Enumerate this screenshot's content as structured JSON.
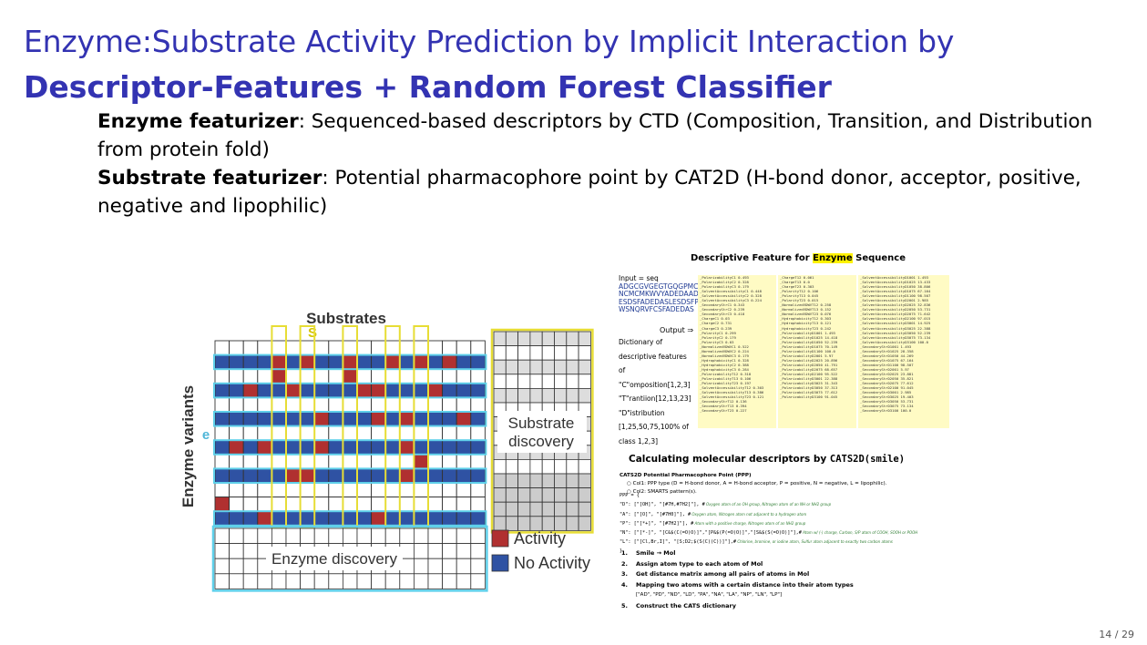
{
  "slide": {
    "title_line1": "Enzyme:Substrate Activity Prediction by Implicit Interaction by",
    "title_line2": "Descriptor-Features + Random Forest Classifier",
    "enzyme_label": "Enzyme featurizer",
    "enzyme_text": ": Sequenced-based descriptors by CTD (Composition, Transition, and Distribution from protein fold)",
    "substrate_label": "Substrate featurizer",
    "substrate_text": ": Potential pharmacophore point by CAT2D (H-bond donor, acceptor, positive, negative and lipophilic)",
    "page_number": "14 / 29"
  },
  "figure_left": {
    "substrates_label": "Substrates",
    "s_label": "S",
    "enzyme_variants_label": "Enzyme variants",
    "e_label": "e",
    "substrate_discovery_line1": "Substrate",
    "substrate_discovery_line2": "discovery",
    "enzyme_discovery_label": "Enzyme discovery",
    "legend": [
      {
        "label": "Activity",
        "color": "#b03030"
      },
      {
        "label": "No Activity",
        "color": "#2f52a3"
      }
    ]
  },
  "figure_right_top": {
    "title_prefix": "Descriptive Feature for ",
    "title_highlight": "Enzyme",
    "title_suffix": " Sequence",
    "input_label": "Input = seq",
    "sequence_lines": [
      "ADGCGVGEGTGQGPMC",
      "NCMCMKWVYADEDAADL",
      "ESDSFADEDASLESDSFP",
      "WSNQRVFCSFADEDAS"
    ],
    "output_label": "Output ⇒",
    "description_lines": [
      "Dictionary of",
      "descriptive features",
      "of",
      "\"C\"omposition[1,2,3]",
      "\"T\"rantiion[12,13,23]",
      "\"D\"istribution",
      "[1,25,50,75,100% of",
      "class 1,2,3]"
    ],
    "column1": [
      "_PolarizabilityC1 0.493",
      "_PolarizabilityC2 0.328",
      "_PolarizabilityC3 0.179",
      "_SolventAccessibilityC1 0.448",
      "_SolventAccessibilityC2 0.328",
      "_SolventAccessibilityC3 0.224",
      "_SecondaryStrC1 0.343",
      "_SecondaryStrC2 0.239",
      "_SecondaryStrC3 0.418",
      "_ChargeC1 0.03",
      "_ChargeC2 0.731",
      "_ChargeC3 0.239",
      "_PolarityC1 0.299",
      "_PolarityC2 0.179",
      "_PolarityC3 0.03",
      "_NormalizedVDWVC1 0.522",
      "_NormalizedVDWVC2 0.224",
      "_NormalizedVDWVC3 0.179",
      "_HydrophobicityC1 0.328",
      "_HydrophobicityC2 0.388",
      "_HydrophobicityC3 0.284",
      "_PolarizabilityT12 0.318",
      "_PolarizabilityT13 0.106",
      "_PolarizabilityT23 0.197",
      "_SolventAccessibilityT12 0.303",
      "_SolventAccessibilityT13 0.386",
      "_SolventAccessibilityT23 0.121",
      "_SecondaryStrT12 0.136",
      "_SecondaryStrT13 0.394",
      "_SecondaryStrT23 0.227"
    ],
    "column2": [
      "_ChargeT12 0.061",
      "_ChargeT13 0.0",
      "_ChargeT23 0.303",
      "_PolarityT12 0.106",
      "_PolarityT13 0.045",
      "_PolarityT23 0.015",
      "_NormalizedVDWVT12 0.258",
      "_NormalizedVDWVT13 0.152",
      "_NormalizedVDWVT23 0.076",
      "_HydrophobicityT12 0.303",
      "_HydrophobicityT13 0.121",
      "_HydrophobicityT23 0.242",
      "_PolarizabilityD1001 1.493",
      "_PolarizabilityD1025 14.418",
      "_PolarizabilityD1050 52.239",
      "_PolarizabilityD1075 70.149",
      "_PolarizabilityD1100 100.0",
      "_PolarizabilityD2001 5.97",
      "_PolarizabilityD2025 20.896",
      "_PolarizabilityD2050 41.791",
      "_PolarizabilityD2075 68.657",
      "_PolarizabilityD2100 95.522",
      "_PolarizabilityD3001 22.388",
      "_PolarizabilityD3025 31.343",
      "_PolarizabilityD3050 37.313",
      "_PolarizabilityD3075 77.612",
      "_PolarizabilityD3100 91.045"
    ],
    "column3": [
      "_SolventAccessibilityD1001 1.493",
      "_SolventAccessibilityD1025 13.433",
      "_SolventAccessibilityD1050 38.806",
      "_SolventAccessibilityD1075 67.164",
      "_SolventAccessibilityD1100 98.507",
      "_SolventAccessibilityD2001 2.985",
      "_SolventAccessibilityD2025 32.836",
      "_SolventAccessibilityD2050 53.731",
      "_SolventAccessibilityD2075 71.642",
      "_SolventAccessibilityD2100 97.015",
      "_SolventAccessibilityD3001 14.925",
      "_SolventAccessibilityD3025 22.388",
      "_SolventAccessibilityD3050 52.239",
      "_SolventAccessibilityD3075 73.134",
      "_SolventAccessibilityD3100 100.0",
      "_SecondaryStrD1001 1.493",
      "_SecondaryStrD1025 28.358",
      "_SecondaryStrD1050 44.269",
      "_SecondaryStrD1075 67.164",
      "_SecondaryStrD1100 98.507",
      "_SecondaryStrD2001 5.97",
      "_SecondaryStrD2025 23.881",
      "_SecondaryStrD2050 35.821",
      "_SecondaryStrD2075 77.612",
      "_SecondaryStrD2100 91.045",
      "_SecondaryStrD3001 2.985",
      "_SecondaryStrD3025 19.403",
      "_SecondaryStrD3050 53.731",
      "_SecondaryStrD3075 73.134",
      "_SecondaryStrD3100 100.0"
    ]
  },
  "figure_right_bottom": {
    "title_prefix": "Calculating molecular descriptors by ",
    "title_code": "CATS2D(smile)",
    "sub_lines": [
      "CATS2D  Potential Pharmacophore Point (PPP)",
      "○   Col1: PPP type (D = H-bond donor,  A = H-bond acceptor, P = positive, N = negative, L = lipophilic).",
      "○   Col2: SMARTS pattern(s)."
    ],
    "code_lines": [
      {
        "code": "PPP = {",
        "comment": ""
      },
      {
        "code": "\"D\": [\"[OH]\", \"[#7H,#7H2]\"], #",
        "comment": "Oxygen atom of an OH group, Nitrogen atom of an NH or NH2 group"
      },
      {
        "code": "\"A\": [\"[O]\", \"[#7H0]\"], #",
        "comment": "Oxygen atom, Nitrogen atom not adjacent to a hydrogen atom"
      },
      {
        "code": "\"P\": [\"[*+]\", \"[#7H2]\"], #",
        "comment": "Atom with a positive charge, Nitrogen atom of an NH2 group"
      },
      {
        "code": "\"N\": [\"[*-]\", \"[C&$(C(=O)O)]\",\"[P&$(P(=O)O)]\",\"[S&$(S(=O)O)]\"],#",
        "comment": "Atom w/ (-) charge, Carbon, S/P atom of COOH, SOOH or POOH"
      },
      {
        "code": "\"L\": [\"[Cl,Br,I]\", \"[S;D2;$(S(C)(C))]\"],#",
        "comment": "Chlorine, bromine, or iodine atom, Sulfur atom adjacent to exactly two carbon atoms"
      },
      {
        "code": "}",
        "comment": ""
      }
    ],
    "steps": [
      {
        "num": "1.",
        "text": "Smile → Mol"
      },
      {
        "num": "2.",
        "text": "Assign atom type to each atom of Mol"
      },
      {
        "num": "3.",
        "text": "Get distance matrix among all pairs of atoms in Mol"
      },
      {
        "num": "4.",
        "text": "Mapping two atoms with a certain distance into their atom types"
      },
      {
        "num": "",
        "text": "[\"AD\", \"PD\", \"ND\", \"LD\", \"PA\", \"NA\", \"LA\", \"NP\", \"LN\", \"LP\"]"
      },
      {
        "num": "5.",
        "text": "Construct the CATS dictionary"
      }
    ]
  }
}
